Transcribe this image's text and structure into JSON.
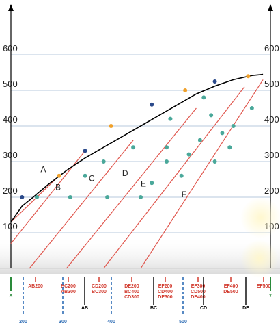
{
  "chart_data": {
    "type": "line",
    "y_ticks": [
      100,
      200,
      300,
      400,
      500,
      600
    ],
    "ylim": [
      0,
      700
    ],
    "xlim": [
      0,
      700
    ],
    "envelope": {
      "x": [
        0,
        30,
        60,
        100,
        150,
        200,
        250,
        300,
        350,
        400,
        450,
        500,
        550,
        600,
        650,
        680
      ],
      "y": [
        130,
        175,
        200,
        235,
        275,
        310,
        340,
        370,
        400,
        430,
        460,
        490,
        512,
        530,
        542,
        545
      ]
    },
    "series": [
      {
        "label": "A",
        "x": [
          0,
          130
        ],
        "y": [
          130,
          260
        ]
      },
      {
        "label": "B",
        "x": [
          0,
          200
        ],
        "y": [
          70,
          330
        ]
      },
      {
        "label": "C",
        "x": [
          50,
          330
        ],
        "y": [
          0,
          360
        ]
      },
      {
        "label": "D",
        "x": [
          150,
          500
        ],
        "y": [
          0,
          450
        ]
      },
      {
        "label": "E",
        "x": [
          250,
          630
        ],
        "y": [
          0,
          510
        ]
      },
      {
        "label": "F",
        "x": [
          350,
          680
        ],
        "y": [
          0,
          530
        ]
      }
    ],
    "envelope_points": [
      [
        30,
        200
      ],
      [
        130,
        260
      ],
      [
        200,
        330
      ],
      [
        270,
        400
      ],
      [
        380,
        460
      ],
      [
        470,
        500
      ],
      [
        550,
        525
      ],
      [
        640,
        540
      ]
    ],
    "grid_points": [
      [
        70,
        200
      ],
      [
        160,
        200
      ],
      [
        200,
        260
      ],
      [
        250,
        300
      ],
      [
        330,
        340
      ],
      [
        260,
        200
      ],
      [
        380,
        240
      ],
      [
        420,
        300
      ],
      [
        420,
        340
      ],
      [
        350,
        200
      ],
      [
        460,
        260
      ],
      [
        480,
        320
      ],
      [
        550,
        300
      ],
      [
        570,
        380
      ],
      [
        600,
        400
      ],
      [
        650,
        450
      ],
      [
        520,
        480
      ],
      [
        430,
        420
      ],
      [
        510,
        360
      ],
      [
        590,
        340
      ],
      [
        540,
        430
      ]
    ],
    "curve_labels": [
      {
        "label": "A",
        "x": 80,
        "y": 270
      },
      {
        "label": "B",
        "x": 120,
        "y": 220
      },
      {
        "label": "C",
        "x": 210,
        "y": 245
      },
      {
        "label": "D",
        "x": 300,
        "y": 260
      },
      {
        "label": "E",
        "x": 350,
        "y": 230
      },
      {
        "label": "F",
        "x": 460,
        "y": 200
      }
    ],
    "bottom_axis": {
      "red_labels": [
        "AB200",
        "BC200\nAB300",
        "CD200\nBC300",
        "DE200\nBC400\nCD300",
        "EF200\nCD400\nDE300",
        "EF300\nCD500\nDE400",
        "EF400\nDE500",
        "EF500"
      ],
      "black_labels": [
        "X",
        "AB",
        "BC",
        "CD",
        "DE",
        "Y"
      ],
      "blue_labels": [
        "200",
        "300",
        "400",
        "500"
      ]
    }
  }
}
